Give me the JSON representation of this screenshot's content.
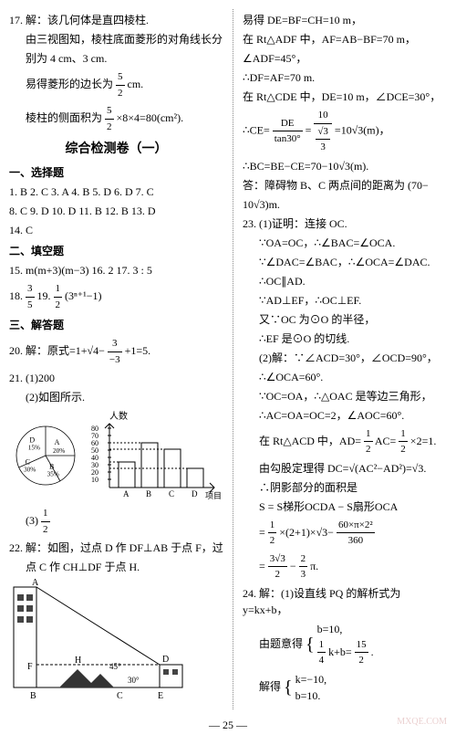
{
  "left": {
    "l1": "17. 解：该几何体是直四棱柱.",
    "l2": "由三视图知，棱柱底面菱形的对角线长分",
    "l3": "别为 4 cm、3 cm.",
    "l4_pre": "易得菱形的边长为",
    "l4_frac_num": "5",
    "l4_frac_den": "2",
    "l4_post": " cm.",
    "l5_pre": "棱柱的侧面积为",
    "l5_frac_num": "5",
    "l5_frac_den": "2",
    "l5_post": "×8×4=80(cm²).",
    "title": "综合检测卷（一）",
    "sec1": "一、选择题",
    "mc1": "1. B   2. C   3. A   4. B   5. D   6. D   7. C",
    "mc2": "8. C   9. D   10. D   11. B   12. B   13. D",
    "mc3": "14. C",
    "sec2": "二、填空题",
    "fb1": "15. m(m+3)(m−3)   16. 2   17. 3 : 5",
    "fb2_pre": "18. ",
    "fb2_f1n": "3",
    "fb2_f1d": "5",
    "fb2_mid": "   19. ",
    "fb2_f2n": "1",
    "fb2_f2d": "2",
    "fb2_post": "(3ⁿ⁺¹−1)",
    "sec3": "三、解答题",
    "q20_pre": "20. 解：原式=1+√4−",
    "q20_fn": "3",
    "q20_fd": "−3",
    "q20_post": "+1=5.",
    "q21_1": "21. (1)200",
    "q21_2": "(2)如图所示.",
    "pie_labels": {
      "a": "A",
      "b": "B",
      "c": "C",
      "d": "D",
      "pa": "20%",
      "pb": "35%",
      "pc": "30%",
      "pd": "15%"
    },
    "bar": {
      "ylabel": "人数",
      "yticks": [
        "80",
        "70",
        "60",
        "50",
        "40",
        "30",
        "20",
        "10"
      ],
      "xticks": [
        "A",
        "B",
        "C",
        "D"
      ],
      "xlabel": "项目",
      "values": [
        40,
        70,
        60,
        30
      ],
      "scale": 0.7,
      "color": "#ffffff",
      "border": "#000000"
    },
    "q21_3_pre": "(3)",
    "q21_3_fn": "1",
    "q21_3_fd": "2",
    "q22_1": "22. 解：如图，过点 D 作 DF⊥AB 于点 F，过",
    "q22_2": "点 C 作 CH⊥DF 于点 H.",
    "tri": {
      "A": "A",
      "D": "D",
      "F": "F",
      "H": "H",
      "B": "B",
      "C": "C",
      "E": "E",
      "a45": "45°",
      "a30": "30°"
    }
  },
  "right": {
    "r1": "易得 DE=BF=CH=10 m，",
    "r2": "在 Rt△ADF 中，AF=AB−BF=70 m，",
    "r3": "∠ADF=45°，",
    "r4": "∴DF=AF=70 m.",
    "r5": "在 Rt△CDE 中，DE=10 m，∠DCE=30°，",
    "r6_pre": "∴CE=",
    "r6_f1n": "DE",
    "r6_f1d": "tan30°",
    "r6_mid": "=",
    "r6_f2n": "10",
    "r6_f2d_pre": "",
    "r6_f2d_sqrt": "√3",
    "r6_f2d_num": "3",
    "r6_post": "=10√3(m)，",
    "r7": "∴BC=BE−CE=70−10√3(m).",
    "r8": "答：障碍物 B、C 两点间的距离为 (70−",
    "r9": "10√3)m.",
    "q23_1": "23. (1)证明：连接 OC.",
    "q23_2": "∵OA=OC，∴∠BAC=∠OCA.",
    "q23_3": "∵∠DAC=∠BAC，∴∠OCA=∠DAC.",
    "q23_4": "∴OC∥AD.",
    "q23_5": "∵AD⊥EF，∴OC⊥EF.",
    "q23_6": "又∵OC 为⊙O 的半径，",
    "q23_7": "∴EF 是⊙O 的切线.",
    "q23_8": "(2)解：∵∠ACD=30°，∠OCD=90°，",
    "q23_9": "∴∠OCA=60°.",
    "q23_10": "∵OC=OA，∴△OAC 是等边三角形，",
    "q23_11": "∴AC=OA=OC=2，∠AOC=60°.",
    "q23_12_pre": "在 Rt△ACD 中，AD=",
    "q23_12_f1n": "1",
    "q23_12_f1d": "2",
    "q23_12_mid": "AC=",
    "q23_12_f2n": "1",
    "q23_12_f2d": "2",
    "q23_12_post": "×2=1.",
    "q23_13": "由勾股定理得 DC=√(AC²−AD²)=√3.",
    "q23_14": "∴阴影部分的面积是",
    "q23_15": "S = S梯形OCDA − S扇形OCA",
    "q23_16_pre": "=",
    "q23_16_f1n": "1",
    "q23_16_f1d": "2",
    "q23_16_mid": "×(2+1)×√3−",
    "q23_16_f2n": "60×π×2²",
    "q23_16_f2d": "360",
    "q23_17_pre": "=",
    "q23_17_f1n": "3√3",
    "q23_17_f1d": "2",
    "q23_17_mid": "−",
    "q23_17_f2n": "2",
    "q23_17_f2d": "3",
    "q23_17_post": "π.",
    "q24_1": "24. 解：(1)设直线 PQ 的解析式为 y=kx+b，",
    "q24_2_pre": "由题意得",
    "q24_2_sys1": "b=10,",
    "q24_2_sys2_pre": "",
    "q24_2_sys2_fn": "1",
    "q24_2_sys2_fd": "4",
    "q24_2_sys2_post": "k+b=",
    "q24_2_sys2_f2n": "15",
    "q24_2_sys2_f2d": "2",
    "q24_2_sys2_end": ".",
    "q24_3_pre": "解得",
    "q24_3_sys1": "k=−10,",
    "q24_3_sys2": "b=10."
  },
  "pagenum": "— 25 —",
  "watermark": "MXQE.COM"
}
